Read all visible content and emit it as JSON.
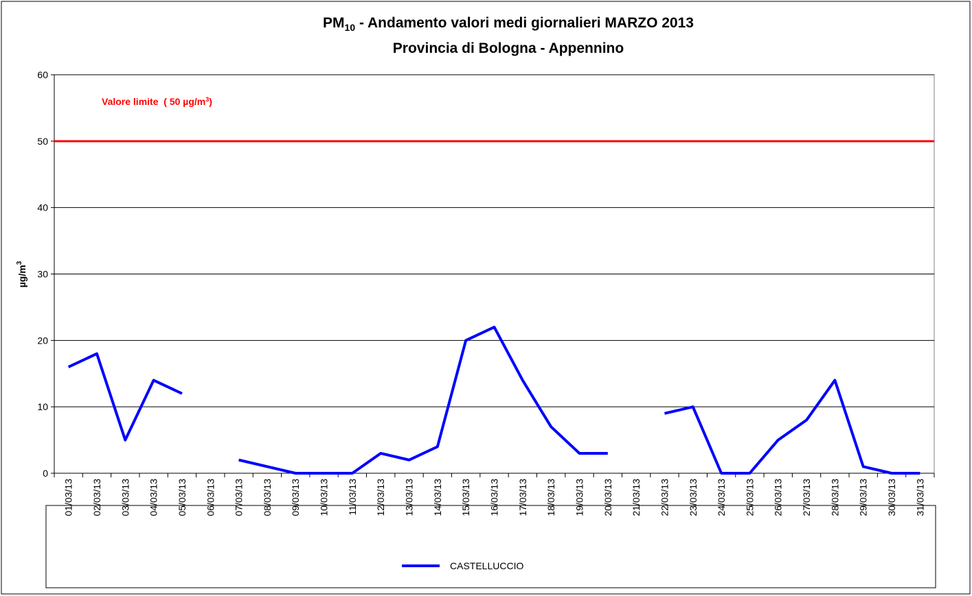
{
  "chart_data": {
    "type": "line",
    "title": "PM",
    "title_subscript": "10",
    "title_rest": " - Andamento valori medi giornalieri MARZO 2013",
    "subtitle": "Provincia di Bologna - Appennino",
    "y_label": "µg/m",
    "y_label_superscript": "3",
    "categories": [
      "01/03/13",
      "02/03/13",
      "03/03/13",
      "04/03/13",
      "05/03/13",
      "06/03/13",
      "07/03/13",
      "08/03/13",
      "09/03/13",
      "10/03/13",
      "11/03/13",
      "12/03/13",
      "13/03/13",
      "14/03/13",
      "15/03/13",
      "16/03/13",
      "17/03/13",
      "18/03/13",
      "19/03/13",
      "20/03/13",
      "21/03/13",
      "22/03/13",
      "23/03/13",
      "24/03/13",
      "25/03/13",
      "26/03/13",
      "27/03/13",
      "28/03/13",
      "29/03/13",
      "30/03/13",
      "31/03/13"
    ],
    "series": [
      {
        "name": "CASTELLUCCIO",
        "color": "#0000ff",
        "values": [
          16,
          18,
          5,
          14,
          12,
          null,
          2,
          1,
          0,
          0,
          0,
          3,
          2,
          4,
          20,
          22,
          14,
          7,
          3,
          3,
          null,
          9,
          10,
          0,
          0,
          5,
          8,
          14,
          1,
          0,
          0
        ]
      }
    ],
    "threshold": {
      "value": 50,
      "color": "#ff0000",
      "label": "Valore limite  ( 50 µg/m",
      "label_superscript": "3",
      "label_end": ")"
    },
    "ylim": [
      0,
      60
    ],
    "yticks": [
      0,
      10,
      20,
      30,
      40,
      50,
      60
    ],
    "grid": true
  }
}
